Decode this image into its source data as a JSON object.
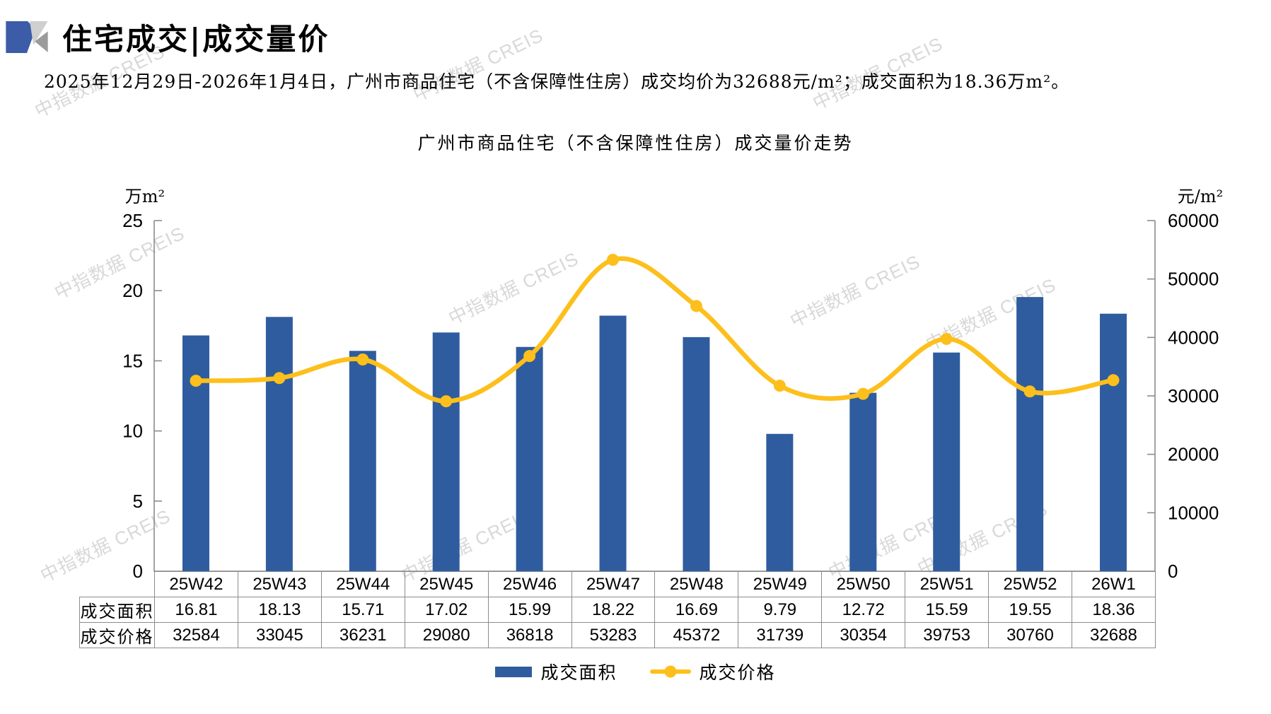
{
  "header": {
    "title": "住宅成交|成交量价"
  },
  "subtitle": "2025年12月29日-2026年1月4日，广州市商品住宅（不含保障性住房）成交均价为32688元/m²；成交面积为18.36万m²。",
  "watermark": {
    "text": "中指数据 CREIS"
  },
  "chart_data": {
    "type": "bar+line",
    "title": "广州市商品住宅（不含保障性住房）成交量价走势",
    "categories": [
      "25W42",
      "25W43",
      "25W44",
      "25W45",
      "25W46",
      "25W47",
      "25W48",
      "25W49",
      "25W50",
      "25W51",
      "25W52",
      "26W1"
    ],
    "series": [
      {
        "name": "成交面积",
        "type": "bar",
        "axis": "left",
        "unit": "万m²",
        "color": "#2F5C9E",
        "values": [
          16.81,
          18.13,
          15.71,
          17.02,
          15.99,
          18.22,
          16.69,
          9.79,
          12.72,
          15.59,
          19.55,
          18.36
        ]
      },
      {
        "name": "成交价格",
        "type": "line",
        "axis": "right",
        "unit": "元/m²",
        "color": "#FDBF1B",
        "values": [
          32584,
          33045,
          36231,
          29080,
          36818,
          53283,
          45372,
          31739,
          30354,
          39753,
          30760,
          32688
        ]
      }
    ],
    "left_axis": {
      "label": "万m²",
      "min": 0,
      "max": 25,
      "step": 5
    },
    "right_axis": {
      "label": "元/m²",
      "min": 0,
      "max": 60000,
      "step": 10000
    },
    "grid": false,
    "legend_position": "bottom"
  },
  "table": {
    "row_labels": [
      "成交面积",
      "成交价格"
    ]
  },
  "legend": {
    "items": [
      {
        "label": "成交面积",
        "marker": "bar",
        "color": "#2F5C9E"
      },
      {
        "label": "成交价格",
        "marker": "line-dot",
        "color": "#FDBF1B"
      }
    ]
  },
  "colors": {
    "axis": "#8c8c8c",
    "table_border": "#8c8c8c",
    "logo_blue": "#3C5CA8"
  }
}
